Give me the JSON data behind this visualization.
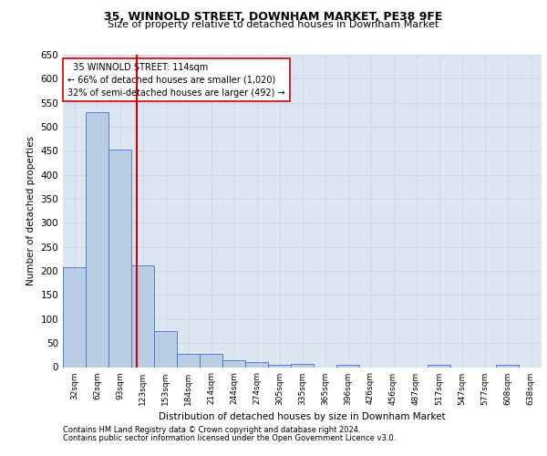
{
  "title_line1": "35, WINNOLD STREET, DOWNHAM MARKET, PE38 9FE",
  "title_line2": "Size of property relative to detached houses in Downham Market",
  "xlabel": "Distribution of detached houses by size in Downham Market",
  "ylabel": "Number of detached properties",
  "footer_line1": "Contains HM Land Registry data © Crown copyright and database right 2024.",
  "footer_line2": "Contains public sector information licensed under the Open Government Licence v3.0.",
  "categories": [
    "32sqm",
    "62sqm",
    "93sqm",
    "123sqm",
    "153sqm",
    "184sqm",
    "214sqm",
    "244sqm",
    "274sqm",
    "305sqm",
    "335sqm",
    "365sqm",
    "396sqm",
    "426sqm",
    "456sqm",
    "487sqm",
    "517sqm",
    "547sqm",
    "577sqm",
    "608sqm",
    "638sqm"
  ],
  "values": [
    207,
    530,
    452,
    212,
    75,
    27,
    27,
    14,
    10,
    5,
    7,
    0,
    5,
    0,
    0,
    0,
    5,
    0,
    0,
    5,
    0
  ],
  "bar_color": "#b8cce4",
  "bar_edge_color": "#4472c4",
  "grid_color": "#d0d8e8",
  "background_color": "#dce6f1",
  "property_line_x": 2.72,
  "property_line_color": "#cc0000",
  "annotation_text": "  35 WINNOLD STREET: 114sqm\n← 66% of detached houses are smaller (1,020)\n32% of semi-detached houses are larger (492) →",
  "annotation_box_color": "#ffffff",
  "annotation_box_edge_color": "#cc0000",
  "ylim": [
    0,
    650
  ],
  "yticks": [
    0,
    50,
    100,
    150,
    200,
    250,
    300,
    350,
    400,
    450,
    500,
    550,
    600,
    650
  ],
  "figsize": [
    6.0,
    5.0
  ],
  "dpi": 100
}
